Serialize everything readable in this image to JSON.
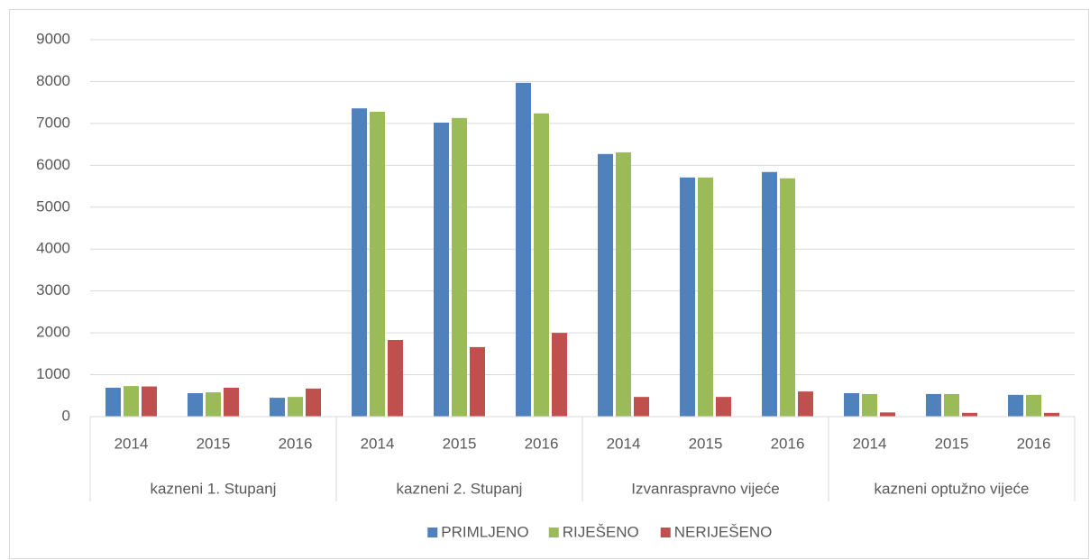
{
  "chart_data": {
    "type": "bar",
    "categories": [
      "2014",
      "2015",
      "2016",
      "2014",
      "2015",
      "2016",
      "2014",
      "2015",
      "2016",
      "2014",
      "2015",
      "2016"
    ],
    "groups": [
      "kazneni 1. Stupanj",
      "kazneni 2. Stupanj",
      "Izvanraspravno vijeće",
      "kazneni optužno vijeće"
    ],
    "series": [
      {
        "name": "PRIMLJENO",
        "color": "#4f81bd",
        "values": [
          690,
          560,
          450,
          7360,
          7020,
          7970,
          6270,
          5710,
          5840,
          560,
          540,
          520
        ]
      },
      {
        "name": "RIJEŠENO",
        "color": "#9bbb59",
        "values": [
          730,
          580,
          470,
          7280,
          7130,
          7240,
          6310,
          5710,
          5690,
          540,
          540,
          520
        ]
      },
      {
        "name": "NERIJEŠENO",
        "color": "#c0504d",
        "values": [
          720,
          690,
          670,
          1830,
          1660,
          2000,
          470,
          470,
          600,
          100,
          90,
          90
        ]
      }
    ],
    "ylim": [
      0,
      9000
    ],
    "yticks": [
      0,
      1000,
      2000,
      3000,
      4000,
      5000,
      6000,
      7000,
      8000,
      9000
    ],
    "grid": true,
    "legend": "bottom"
  }
}
